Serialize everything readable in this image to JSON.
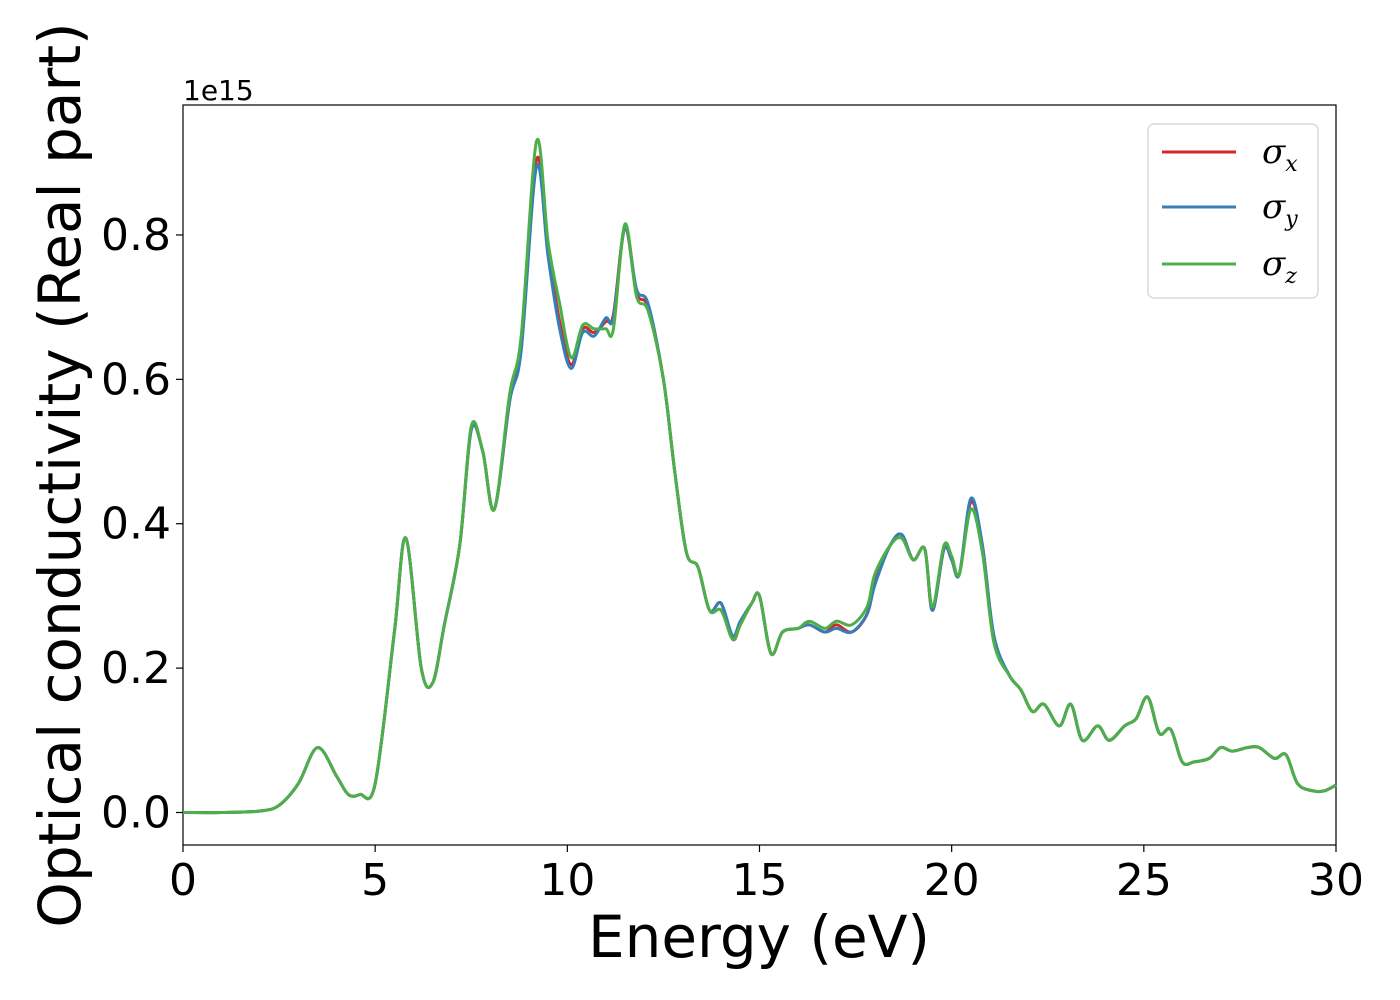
{
  "chart_data": {
    "type": "line",
    "xlabel": "Energy (eV)",
    "ylabel": "Optical conductivity (Real part)",
    "y_offset_label": "1e15",
    "xlim": [
      0,
      30
    ],
    "ylim": [
      -0.045,
      0.98
    ],
    "xticks": [
      0,
      5,
      10,
      15,
      20,
      25,
      30
    ],
    "xtick_labels": [
      "0",
      "5",
      "10",
      "15",
      "20",
      "25",
      "30"
    ],
    "yticks": [
      0.0,
      0.2,
      0.4,
      0.6,
      0.8
    ],
    "ytick_labels": [
      "0.0",
      "0.2",
      "0.4",
      "0.6",
      "0.8"
    ],
    "grid": false,
    "legend_position": "top-right",
    "x": [
      0,
      1,
      2,
      2.5,
      3,
      3.5,
      4,
      4.3,
      4.6,
      5,
      5.5,
      5.8,
      6.2,
      6.5,
      6.8,
      7.2,
      7.5,
      7.8,
      8.1,
      8.5,
      8.8,
      9.2,
      9.5,
      9.8,
      10.1,
      10.4,
      10.7,
      11.0,
      11.2,
      11.5,
      11.8,
      12.1,
      12.5,
      12.8,
      13.1,
      13.4,
      13.7,
      14.0,
      14.3,
      14.5,
      14.8,
      15.0,
      15.3,
      15.6,
      16.0,
      16.3,
      16.7,
      17.0,
      17.4,
      17.8,
      18.0,
      18.4,
      18.7,
      19.0,
      19.3,
      19.5,
      19.8,
      20.0,
      20.2,
      20.5,
      20.8,
      21.1,
      21.5,
      21.8,
      22.1,
      22.4,
      22.8,
      23.1,
      23.4,
      23.8,
      24.1,
      24.5,
      24.8,
      25.1,
      25.4,
      25.7,
      26.0,
      26.3,
      26.7,
      27.0,
      27.3,
      27.7,
      28.0,
      28.4,
      28.7,
      29.0,
      29.4,
      29.7,
      30.0
    ],
    "series": [
      {
        "name": "σx",
        "name_base": "σ",
        "name_sub": "x",
        "color": "#d62728",
        "values": [
          0.0,
          0.0,
          0.002,
          0.01,
          0.04,
          0.09,
          0.05,
          0.025,
          0.025,
          0.04,
          0.25,
          0.38,
          0.2,
          0.18,
          0.26,
          0.37,
          0.53,
          0.5,
          0.42,
          0.57,
          0.65,
          0.905,
          0.78,
          0.68,
          0.62,
          0.67,
          0.665,
          0.68,
          0.69,
          0.81,
          0.72,
          0.7,
          0.6,
          0.47,
          0.36,
          0.34,
          0.28,
          0.29,
          0.24,
          0.26,
          0.29,
          0.3,
          0.22,
          0.25,
          0.255,
          0.26,
          0.25,
          0.26,
          0.25,
          0.275,
          0.32,
          0.37,
          0.385,
          0.35,
          0.365,
          0.28,
          0.365,
          0.35,
          0.33,
          0.43,
          0.37,
          0.24,
          0.19,
          0.17,
          0.14,
          0.15,
          0.12,
          0.15,
          0.1,
          0.12,
          0.1,
          0.12,
          0.13,
          0.16,
          0.11,
          0.115,
          0.07,
          0.07,
          0.075,
          0.09,
          0.085,
          0.09,
          0.09,
          0.075,
          0.08,
          0.04,
          0.03,
          0.03,
          0.038
        ]
      },
      {
        "name": "σy",
        "name_base": "σ",
        "name_sub": "y",
        "color": "#377eb8",
        "values": [
          0.0,
          0.0,
          0.002,
          0.01,
          0.04,
          0.09,
          0.05,
          0.025,
          0.025,
          0.04,
          0.25,
          0.38,
          0.2,
          0.18,
          0.26,
          0.37,
          0.53,
          0.5,
          0.42,
          0.57,
          0.64,
          0.895,
          0.77,
          0.67,
          0.615,
          0.665,
          0.66,
          0.685,
          0.685,
          0.81,
          0.725,
          0.705,
          0.6,
          0.47,
          0.36,
          0.34,
          0.28,
          0.29,
          0.245,
          0.265,
          0.29,
          0.3,
          0.22,
          0.25,
          0.255,
          0.26,
          0.25,
          0.255,
          0.25,
          0.275,
          0.315,
          0.37,
          0.385,
          0.35,
          0.365,
          0.28,
          0.365,
          0.35,
          0.33,
          0.435,
          0.37,
          0.245,
          0.19,
          0.17,
          0.14,
          0.15,
          0.12,
          0.15,
          0.1,
          0.12,
          0.1,
          0.12,
          0.13,
          0.16,
          0.11,
          0.115,
          0.07,
          0.07,
          0.075,
          0.09,
          0.085,
          0.09,
          0.09,
          0.075,
          0.08,
          0.04,
          0.03,
          0.03,
          0.038
        ]
      },
      {
        "name": "σz",
        "name_base": "σ",
        "name_sub": "z",
        "color": "#4daf4a",
        "values": [
          0.0,
          0.0,
          0.002,
          0.01,
          0.04,
          0.09,
          0.05,
          0.025,
          0.025,
          0.04,
          0.25,
          0.38,
          0.2,
          0.18,
          0.26,
          0.37,
          0.535,
          0.5,
          0.42,
          0.58,
          0.66,
          0.93,
          0.79,
          0.705,
          0.63,
          0.675,
          0.67,
          0.67,
          0.67,
          0.815,
          0.715,
          0.695,
          0.6,
          0.47,
          0.36,
          0.34,
          0.28,
          0.28,
          0.24,
          0.26,
          0.29,
          0.3,
          0.22,
          0.25,
          0.255,
          0.265,
          0.255,
          0.265,
          0.26,
          0.285,
          0.33,
          0.37,
          0.38,
          0.35,
          0.365,
          0.285,
          0.37,
          0.355,
          0.33,
          0.42,
          0.36,
          0.235,
          0.19,
          0.17,
          0.14,
          0.15,
          0.12,
          0.15,
          0.1,
          0.12,
          0.1,
          0.12,
          0.13,
          0.16,
          0.11,
          0.115,
          0.07,
          0.07,
          0.075,
          0.09,
          0.085,
          0.09,
          0.09,
          0.075,
          0.08,
          0.04,
          0.03,
          0.03,
          0.038
        ]
      }
    ]
  }
}
